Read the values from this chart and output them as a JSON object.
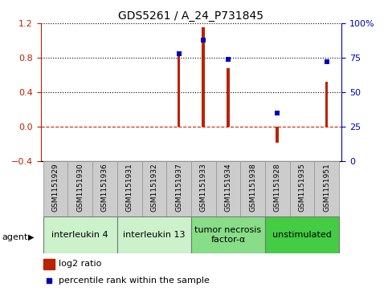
{
  "title": "GDS5261 / A_24_P731845",
  "samples": [
    "GSM1151929",
    "GSM1151930",
    "GSM1151936",
    "GSM1151931",
    "GSM1151932",
    "GSM1151937",
    "GSM1151933",
    "GSM1151934",
    "GSM1151938",
    "GSM1151928",
    "GSM1151935",
    "GSM1151951"
  ],
  "log2_ratio": [
    0.0,
    0.0,
    0.0,
    0.0,
    0.0,
    0.82,
    1.15,
    0.68,
    0.0,
    -0.18,
    0.0,
    0.52
  ],
  "percentile": [
    null,
    null,
    null,
    null,
    null,
    78,
    88,
    74,
    null,
    35,
    null,
    72
  ],
  "groups": [
    {
      "label": "interleukin 4",
      "indices": [
        0,
        1,
        2
      ],
      "color": "#ccf2cc"
    },
    {
      "label": "interleukin 13",
      "indices": [
        3,
        4,
        5
      ],
      "color": "#ccf2cc"
    },
    {
      "label": "tumor necrosis\nfactor-α",
      "indices": [
        6,
        7,
        8
      ],
      "color": "#88dd88"
    },
    {
      "label": "unstimulated",
      "indices": [
        9,
        10,
        11
      ],
      "color": "#44cc44"
    }
  ],
  "ylim_left": [
    -0.4,
    1.2
  ],
  "ylim_right": [
    0,
    100
  ],
  "yticks_left": [
    -0.4,
    0.0,
    0.4,
    0.8,
    1.2
  ],
  "yticks_right": [
    0,
    25,
    50,
    75,
    100
  ],
  "bar_color": "#bb2200",
  "dot_color": "#0000bb",
  "bar_width": 0.12,
  "dot_size": 4,
  "legend_items": [
    "log2 ratio",
    "percentile rank within the sample"
  ],
  "agent_label": "agent",
  "sample_box_color": "#cccccc",
  "sample_box_edge": "#999999",
  "gridline_color": "black",
  "zero_line_color": "#cc2200",
  "title_fontsize": 10,
  "tick_fontsize": 8,
  "label_fontsize": 6.5,
  "group_fontsize": 8,
  "legend_fontsize": 8
}
